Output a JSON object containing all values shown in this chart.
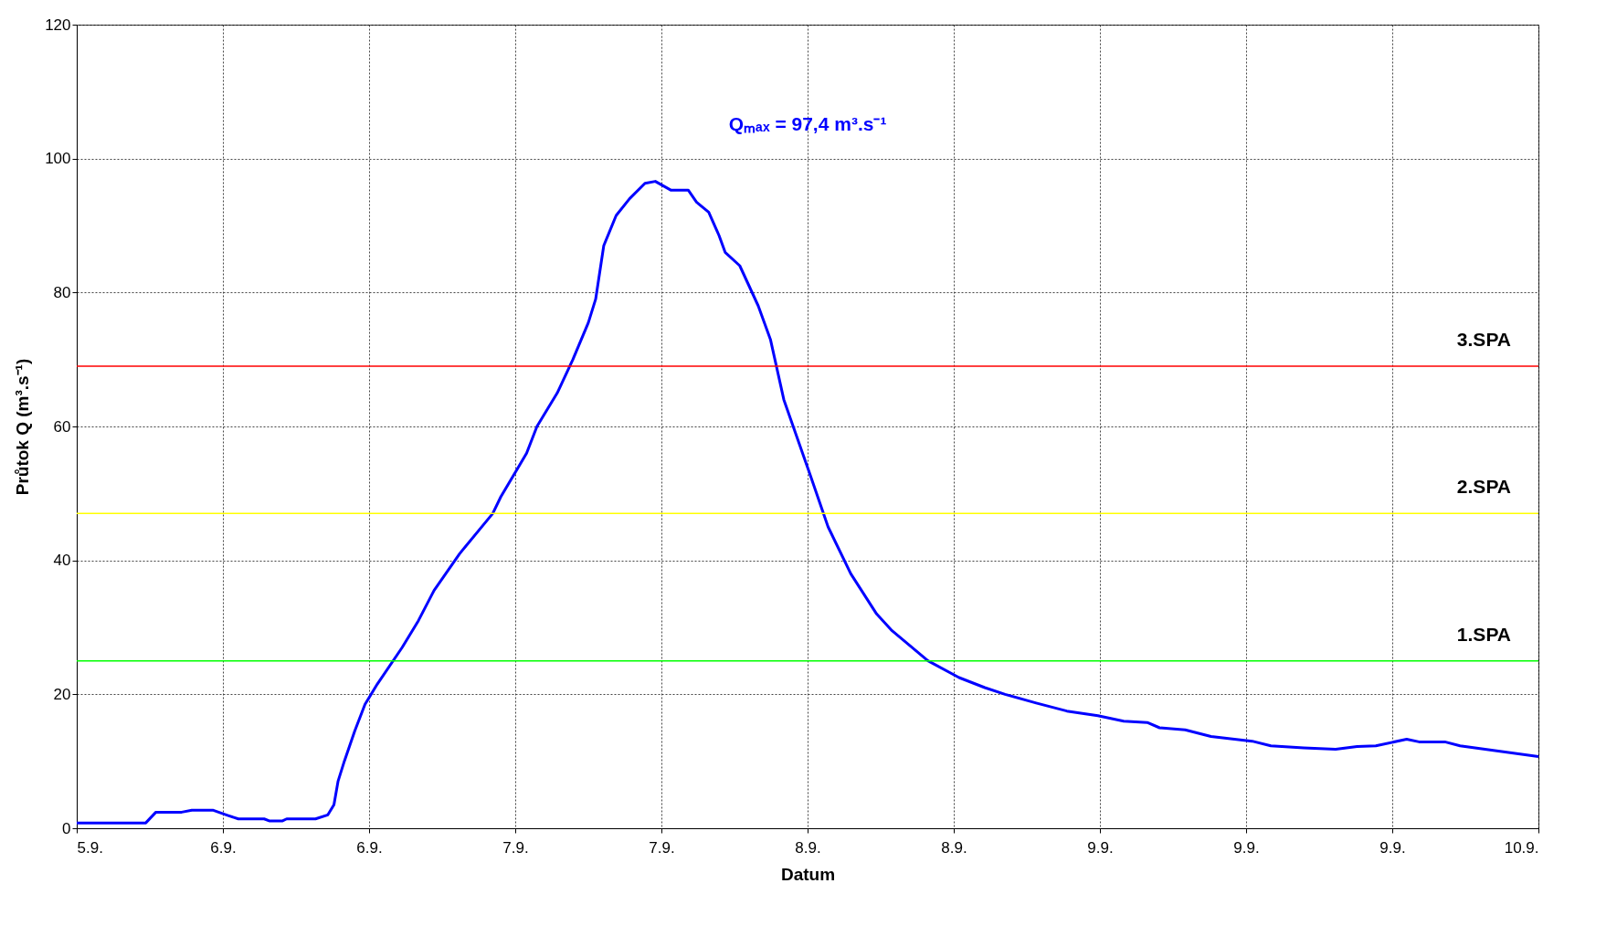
{
  "chart_data": {
    "type": "line",
    "xlabel": "Datum",
    "ylabel": "Průtok Q (m³.s⁻¹)",
    "annotations": [
      "Qₘₐₓ = 97,4 m³.s⁻¹"
    ],
    "xlim": [
      "--09-05T00:00",
      "--09-10T00:00"
    ],
    "ylim": [
      0,
      120
    ],
    "xticks": [
      {
        "value": "--09-05T00:00",
        "label": "5.9."
      },
      {
        "value": "--09-05T12:00",
        "label": "6.9."
      },
      {
        "value": "--09-06T00:00",
        "label": "6.9."
      },
      {
        "value": "--09-06T12:00",
        "label": "7.9."
      },
      {
        "value": "--09-07T00:00",
        "label": "7.9."
      },
      {
        "value": "--09-07T12:00",
        "label": "8.9."
      },
      {
        "value": "--09-08T00:00",
        "label": "8.9."
      },
      {
        "value": "--09-08T12:00",
        "label": "9.9."
      },
      {
        "value": "--09-09T00:00",
        "label": "9.9."
      },
      {
        "value": "--09-09T12:00",
        "label": "9.9."
      },
      {
        "value": "--09-10T00:00",
        "label": "10.9."
      }
    ],
    "yticks": [
      0,
      20,
      40,
      60,
      80,
      100,
      120
    ],
    "grid": true,
    "line_style": "solid",
    "series": [
      {
        "color": "#0000ff",
        "x": [
          "--09-05T00:00",
          "--09-05T05:40",
          "--09-05T06:30",
          "--09-05T08:37",
          "--09-05T09:27",
          "--09-05T11:10",
          "--09-05T12:26",
          "--09-05T13:16",
          "--09-05T15:23",
          "--09-05T15:48",
          "--09-05T16:54",
          "--09-05T17:14",
          "--09-05T19:36",
          "--09-05T20:37",
          "--09-05T21:07",
          "--09-05T21:27",
          "--09-05T21:58",
          "--09-05T22:49",
          "--09-05T23:40",
          "--09-06T00:40",
          "--09-06T02:43",
          "--09-06T04:03",
          "--09-06T05:20",
          "--09-06T07:26",
          "--09-06T10:09",
          "--09-06T10:49",
          "--09-06T12:56",
          "--09-06T13:47",
          "--09-06T15:27",
          "--09-06T16:44",
          "--09-06T18:00",
          "--09-06T18:36",
          "--09-06T19:16",
          "--09-06T20:17",
          "--09-06T21:23",
          "--09-06T22:39",
          "--09-06T23:30",
          "--09-07T00:46",
          "--09-07T02:12",
          "--09-07T02:53",
          "--09-07T03:53",
          "--09-07T04:44",
          "--09-07T05:14",
          "--09-07T06:26",
          "--09-07T07:57",
          "--09-07T08:57",
          "--09-07T10:03",
          "--09-07T12:10",
          "--09-07T13:41",
          "--09-07T15:33",
          "--09-07T17:40",
          "--09-07T18:56",
          "--09-07T21:53",
          "--09-08T00:26",
          "--09-08T02:33",
          "--09-08T04:13",
          "--09-08T06:46",
          "--09-08T09:17",
          "--09-08T11:50",
          "--09-08T13:57",
          "--09-08T15:53",
          "--09-08T16:54",
          "--09-08T19:00",
          "--09-08T21:07",
          "--09-09T00:30",
          "--09-09T02:02",
          "--09-09T04:44",
          "--09-09T07:21",
          "--09-09T09:07",
          "--09-09T10:39",
          "--09-09T13:11",
          "--09-09T14:12",
          "--09-09T16:19",
          "--09-09T17:34",
          "--09-10T00:00"
        ],
        "values": [
          0.8,
          0.8,
          2.4,
          2.4,
          2.7,
          2.7,
          1.9,
          1.4,
          1.4,
          1.1,
          1.1,
          1.4,
          1.4,
          2,
          3.5,
          7,
          10,
          14.5,
          18.5,
          21.5,
          27,
          31,
          35.5,
          41,
          47,
          49.5,
          56,
          60,
          65,
          70,
          75.5,
          79,
          87,
          91.5,
          94,
          96.3,
          96.6,
          95.3,
          95.3,
          93.5,
          92,
          88.5,
          86,
          84,
          78,
          73,
          64,
          53,
          45,
          38,
          32,
          29.5,
          25,
          22.5,
          21,
          20,
          18.7,
          17.5,
          16.8,
          16,
          15.8,
          15,
          14.7,
          13.7,
          13,
          12.3,
          12,
          11.8,
          12.2,
          12.3,
          13.3,
          12.9,
          12.9,
          12.3,
          10.7
        ]
      }
    ],
    "ref_lines": [
      {
        "axis": "y",
        "value": 69,
        "label": "3.SPA",
        "color": "#ff0000"
      },
      {
        "axis": "y",
        "value": 47,
        "label": "2.SPA",
        "color": "#ffff00"
      },
      {
        "axis": "y",
        "value": 25,
        "label": "1.SPA",
        "color": "#00ff00"
      }
    ]
  }
}
